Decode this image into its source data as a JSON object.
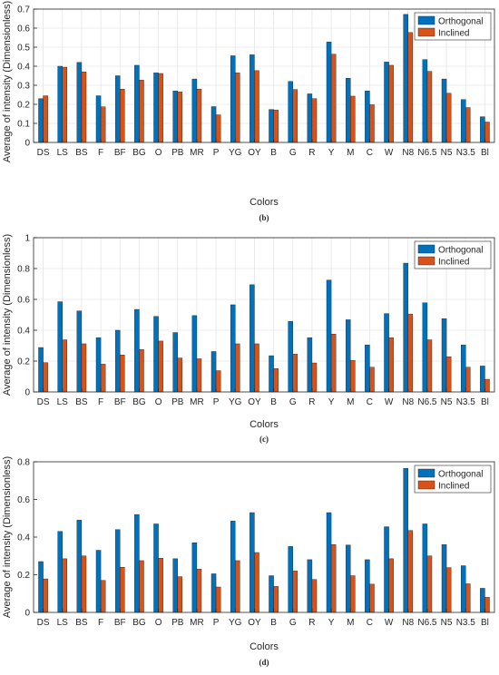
{
  "colors": {
    "orthogonal": "#0072BD",
    "inclined": "#D95319",
    "grid": "#e6e6e6",
    "axis": "#262626"
  },
  "chart_data": [
    {
      "type": "bar",
      "panel_label": "(b)",
      "xlabel": "Colors",
      "ylabel": "Average of intensity (Dimensionless)",
      "ylim": [
        0,
        0.7
      ],
      "yticks": [
        0,
        0.1,
        0.2,
        0.3,
        0.4,
        0.5,
        0.6,
        0.7
      ],
      "ytick_labels": [
        "0",
        "0.1",
        "0.2",
        "0.3",
        "0.4",
        "0.5",
        "0.6",
        "0.7"
      ],
      "grid": true,
      "legend_position": "top-right",
      "categories": [
        "DS",
        "LS",
        "BS",
        "F",
        "BF",
        "BG",
        "O",
        "PB",
        "MR",
        "P",
        "YG",
        "OY",
        "B",
        "G",
        "R",
        "Y",
        "M",
        "C",
        "W",
        "N8",
        "N6.5",
        "N5",
        "N3.5",
        "Bl"
      ],
      "series": [
        {
          "name": "Orthogonal",
          "values": [
            0.23,
            0.4,
            0.42,
            0.245,
            0.35,
            0.405,
            0.365,
            0.27,
            0.333,
            0.188,
            0.455,
            0.46,
            0.173,
            0.32,
            0.255,
            0.527,
            0.337,
            0.27,
            0.422,
            0.672,
            0.435,
            0.333,
            0.225,
            0.135
          ]
        },
        {
          "name": "Inclined",
          "values": [
            0.245,
            0.395,
            0.37,
            0.187,
            0.28,
            0.327,
            0.362,
            0.265,
            0.28,
            0.145,
            0.365,
            0.377,
            0.17,
            0.278,
            0.23,
            0.463,
            0.243,
            0.198,
            0.405,
            0.577,
            0.373,
            0.258,
            0.183,
            0.107
          ]
        }
      ]
    },
    {
      "type": "bar",
      "panel_label": "(c)",
      "xlabel": "Colors",
      "ylabel": "Average of intensity (Dimensionless)",
      "ylim": [
        0,
        1
      ],
      "yticks": [
        0,
        0.2,
        0.4,
        0.6,
        0.8,
        1
      ],
      "ytick_labels": [
        "0",
        "0.2",
        "0.4",
        "0.6",
        "0.8",
        "1"
      ],
      "grid": true,
      "legend_position": "top-right",
      "categories": [
        "DS",
        "LS",
        "BS",
        "F",
        "BF",
        "BG",
        "O",
        "PB",
        "MR",
        "P",
        "YG",
        "OY",
        "B",
        "G",
        "R",
        "Y",
        "M",
        "C",
        "W",
        "N8",
        "N6.5",
        "N5",
        "N3.5",
        "Bl"
      ],
      "series": [
        {
          "name": "Orthogonal",
          "values": [
            0.288,
            0.585,
            0.525,
            0.352,
            0.4,
            0.535,
            0.49,
            0.385,
            0.495,
            0.262,
            0.565,
            0.695,
            0.235,
            0.458,
            0.352,
            0.725,
            0.468,
            0.305,
            0.508,
            0.835,
            0.578,
            0.475,
            0.305,
            0.168
          ]
        },
        {
          "name": "Inclined",
          "values": [
            0.19,
            0.338,
            0.312,
            0.18,
            0.24,
            0.275,
            0.33,
            0.22,
            0.215,
            0.138,
            0.312,
            0.312,
            0.152,
            0.245,
            0.188,
            0.375,
            0.205,
            0.16,
            0.352,
            0.505,
            0.338,
            0.228,
            0.16,
            0.082
          ]
        }
      ]
    },
    {
      "type": "bar",
      "panel_label": "(d)",
      "xlabel": "Colors",
      "ylabel": "Average of intensity (Dimensionless)",
      "ylim": [
        0,
        0.8
      ],
      "yticks": [
        0,
        0.2,
        0.4,
        0.6,
        0.8
      ],
      "ytick_labels": [
        "0",
        "0.2",
        "0.4",
        "0.6",
        "0.8"
      ],
      "grid": false,
      "legend_position": "top-right",
      "categories": [
        "DS",
        "LS",
        "BS",
        "F",
        "BF",
        "BG",
        "O",
        "PB",
        "MR",
        "P",
        "YG",
        "OY",
        "B",
        "G",
        "R",
        "Y",
        "M",
        "C",
        "W",
        "N8",
        "N6.5",
        "N5",
        "N3.5",
        "Bl"
      ],
      "series": [
        {
          "name": "Orthogonal",
          "values": [
            0.27,
            0.43,
            0.49,
            0.33,
            0.44,
            0.52,
            0.47,
            0.285,
            0.37,
            0.205,
            0.485,
            0.53,
            0.195,
            0.35,
            0.28,
            0.53,
            0.358,
            0.28,
            0.455,
            0.765,
            0.47,
            0.36,
            0.248,
            0.128
          ]
        },
        {
          "name": "Inclined",
          "values": [
            0.178,
            0.285,
            0.3,
            0.17,
            0.24,
            0.275,
            0.288,
            0.19,
            0.23,
            0.135,
            0.275,
            0.318,
            0.138,
            0.22,
            0.175,
            0.36,
            0.195,
            0.15,
            0.285,
            0.435,
            0.3,
            0.238,
            0.152,
            0.08
          ]
        }
      ]
    }
  ]
}
